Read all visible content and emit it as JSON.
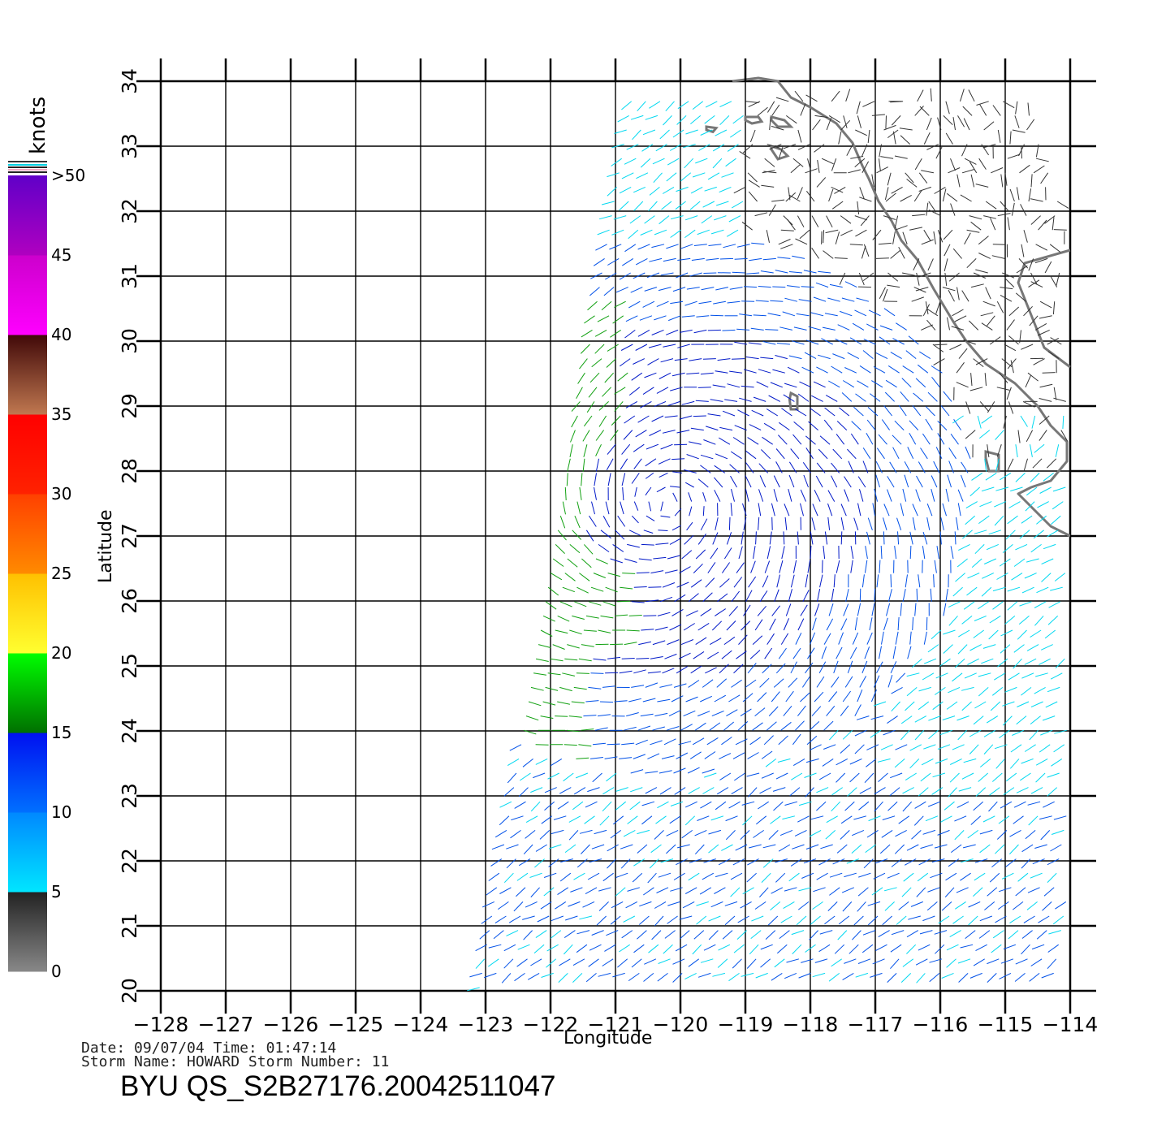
{
  "map": {
    "x_axis_label": "Longitude",
    "y_axis_label": "Latitude",
    "lon_ticks": [
      -128,
      -127,
      -126,
      -125,
      -124,
      -123,
      -122,
      -121,
      -120,
      -119,
      -118,
      -117,
      -116,
      -115,
      -114
    ],
    "lat_ticks": [
      20,
      21,
      22,
      23,
      24,
      25,
      26,
      27,
      28,
      29,
      30,
      31,
      32,
      33,
      34
    ],
    "lon_range": [
      -128,
      -114
    ],
    "lat_range": [
      20,
      34
    ],
    "coastline_color": "#777777",
    "grid": true
  },
  "colorbar": {
    "unit": "knots",
    "labels": [
      "0",
      "5",
      "10",
      "15",
      "20",
      "25",
      "30",
      "35",
      "40",
      "45",
      ">50"
    ],
    "bands": [
      {
        "from": 0,
        "to": 5,
        "colors": [
          "#888888",
          "#222222"
        ]
      },
      {
        "from": 5,
        "to": 10,
        "colors": [
          "#00e6ff",
          "#0088ff"
        ]
      },
      {
        "from": 10,
        "to": 15,
        "colors": [
          "#0070ff",
          "#0010f0"
        ]
      },
      {
        "from": 15,
        "to": 20,
        "colors": [
          "#007000",
          "#00ff00"
        ]
      },
      {
        "from": 20,
        "to": 25,
        "colors": [
          "#ffff30",
          "#ffc000"
        ]
      },
      {
        "from": 25,
        "to": 30,
        "colors": [
          "#ff8a00",
          "#ff4000"
        ]
      },
      {
        "from": 30,
        "to": 35,
        "colors": [
          "#ff2200",
          "#ff0000"
        ]
      },
      {
        "from": 35,
        "to": 40,
        "colors": [
          "#c07850",
          "#400808"
        ]
      },
      {
        "from": 40,
        "to": 45,
        "colors": [
          "#ff00ff",
          "#cc00cc"
        ]
      },
      {
        "from": 45,
        "to": 50,
        "colors": [
          "#b000c0",
          "#6000c8"
        ]
      }
    ]
  },
  "wind_field": {
    "storm_center": {
      "lon": -120.2,
      "lat": 27.5
    },
    "swath_west_edge": [
      {
        "lat": 20,
        "lon": -123.1
      },
      {
        "lat": 34,
        "lon": -120.7
      }
    ],
    "palette": {
      "calm": "#333333",
      "light": "#00d8f0",
      "moderate": "#0050e8",
      "strong": "#0018c8",
      "gale": "#10a010"
    }
  },
  "footer": {
    "line1": "Date: 09/07/04   Time: 01:47:14",
    "line2": "Storm  Name:  HOWARD   Storm  Number:  11",
    "product": "BYU  QS_S2B27176.20042511047"
  }
}
